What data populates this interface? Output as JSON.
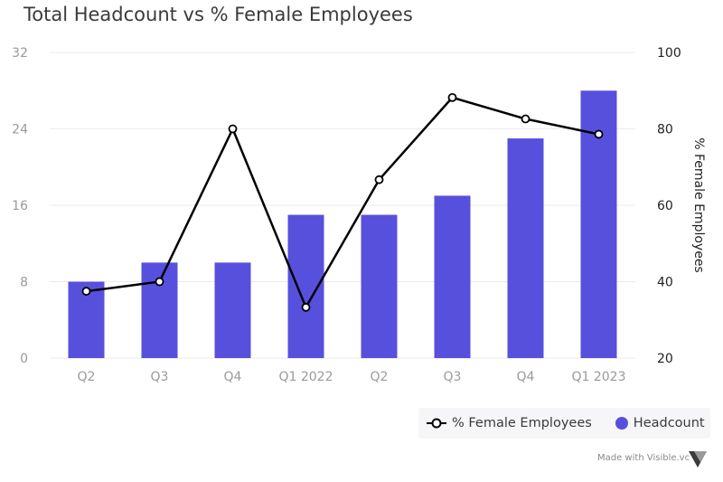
{
  "title": "Total Headcount vs % Female Employees",
  "colors": {
    "bar": "#5750dd",
    "line": "#000000",
    "grid": "#ebebeb",
    "tick": "#9a9a9a",
    "text": "#3a3a3a"
  },
  "legend": {
    "line_label": "% Female Employees",
    "bar_label": "Headcount",
    "position": "bottom-right"
  },
  "watermark": {
    "text": "Made with Visible.vc",
    "logo_icon": "visible-logo-icon"
  },
  "chart_data": {
    "type": "bar",
    "categories": [
      "Q2",
      "Q3",
      "Q4",
      "Q1 2022",
      "Q2",
      "Q3",
      "Q4",
      "Q1 2023"
    ],
    "series": [
      {
        "name": "Headcount",
        "type": "bar",
        "axis": "left",
        "values": [
          8,
          10,
          10,
          15,
          15,
          17,
          23,
          28
        ]
      },
      {
        "name": "% Female Employees",
        "type": "line",
        "axis": "right",
        "values": [
          37.5,
          40,
          80,
          33.3,
          66.7,
          88.2,
          82.6,
          78.6
        ]
      }
    ],
    "y_left": {
      "ticks": [
        "0",
        "8",
        "16",
        "24",
        "32"
      ],
      "ylim": [
        0,
        32
      ]
    },
    "y_right": {
      "label": "% Female Employees",
      "ticks": [
        "20",
        "40",
        "60",
        "80",
        "100"
      ],
      "ylim": [
        20,
        100
      ]
    },
    "grid": true
  }
}
